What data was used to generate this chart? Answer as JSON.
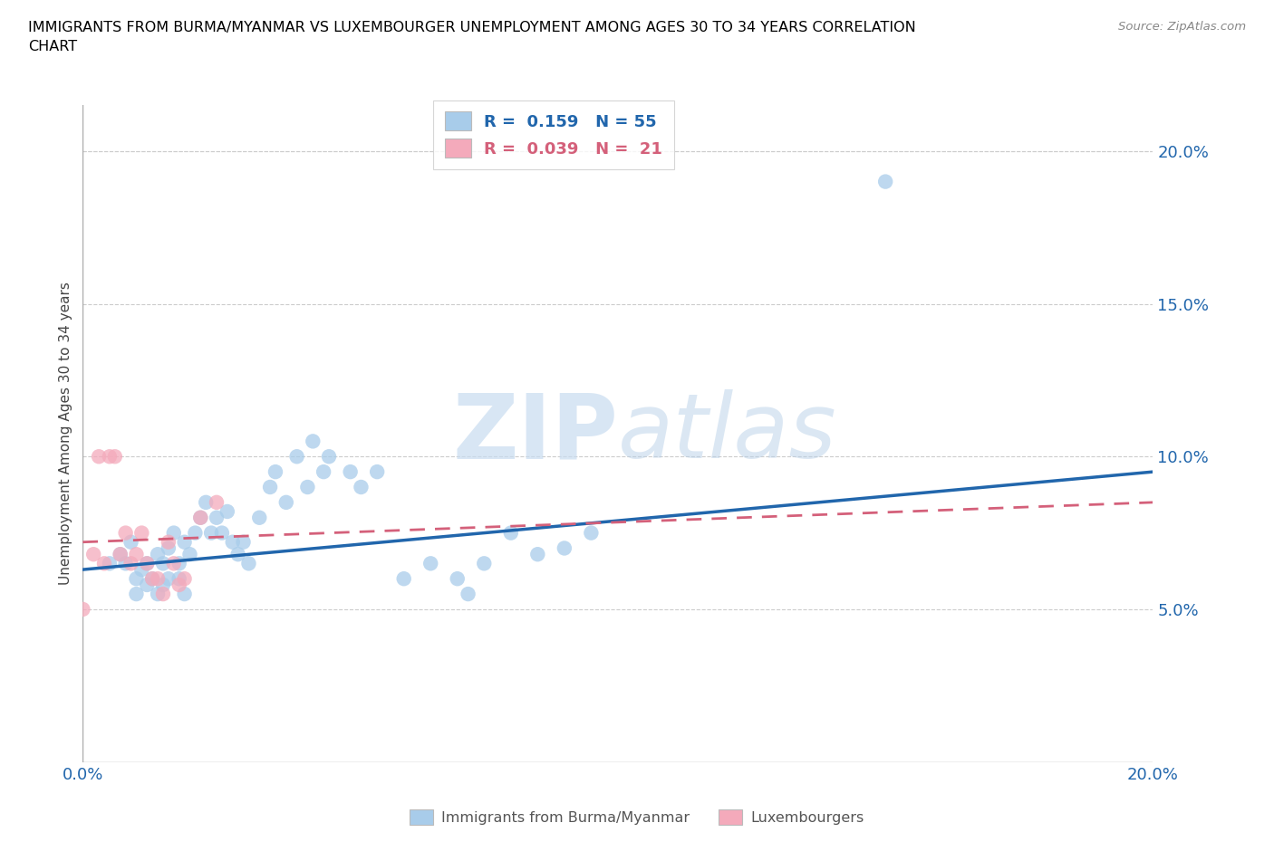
{
  "title": "IMMIGRANTS FROM BURMA/MYANMAR VS LUXEMBOURGER UNEMPLOYMENT AMONG AGES 30 TO 34 YEARS CORRELATION\nCHART",
  "source": "Source: ZipAtlas.com",
  "ylabel": "Unemployment Among Ages 30 to 34 years",
  "xlim": [
    0.0,
    0.2
  ],
  "ylim": [
    0.0,
    0.215
  ],
  "xticks": [
    0.0,
    0.04,
    0.08,
    0.12,
    0.16,
    0.2
  ],
  "yticks": [
    0.0,
    0.05,
    0.1,
    0.15,
    0.2
  ],
  "xtick_labels": [
    "0.0%",
    "",
    "",
    "",
    "",
    "20.0%"
  ],
  "ytick_labels": [
    "",
    "5.0%",
    "10.0%",
    "15.0%",
    "20.0%"
  ],
  "blue_color": "#A8CCEA",
  "pink_color": "#F4AABB",
  "blue_line_color": "#2166AC",
  "pink_line_color": "#D4607A",
  "watermark_zip": "ZIP",
  "watermark_atlas": "atlas",
  "legend_R1": "R =  0.159",
  "legend_N1": "N = 55",
  "legend_R2": "R =  0.039",
  "legend_N2": "N =  21",
  "blue_scatter_x": [
    0.005,
    0.007,
    0.008,
    0.009,
    0.01,
    0.01,
    0.011,
    0.012,
    0.012,
    0.013,
    0.014,
    0.014,
    0.015,
    0.015,
    0.016,
    0.016,
    0.017,
    0.018,
    0.018,
    0.019,
    0.019,
    0.02,
    0.021,
    0.022,
    0.023,
    0.024,
    0.025,
    0.026,
    0.027,
    0.028,
    0.029,
    0.03,
    0.031,
    0.033,
    0.035,
    0.036,
    0.038,
    0.04,
    0.042,
    0.043,
    0.045,
    0.046,
    0.05,
    0.052,
    0.055,
    0.06,
    0.065,
    0.07,
    0.072,
    0.075,
    0.08,
    0.085,
    0.09,
    0.095,
    0.15
  ],
  "blue_scatter_y": [
    0.065,
    0.068,
    0.065,
    0.072,
    0.06,
    0.055,
    0.063,
    0.065,
    0.058,
    0.06,
    0.055,
    0.068,
    0.065,
    0.058,
    0.07,
    0.06,
    0.075,
    0.065,
    0.06,
    0.055,
    0.072,
    0.068,
    0.075,
    0.08,
    0.085,
    0.075,
    0.08,
    0.075,
    0.082,
    0.072,
    0.068,
    0.072,
    0.065,
    0.08,
    0.09,
    0.095,
    0.085,
    0.1,
    0.09,
    0.105,
    0.095,
    0.1,
    0.095,
    0.09,
    0.095,
    0.06,
    0.065,
    0.06,
    0.055,
    0.065,
    0.075,
    0.068,
    0.07,
    0.075,
    0.19
  ],
  "pink_scatter_x": [
    0.0,
    0.002,
    0.003,
    0.004,
    0.005,
    0.006,
    0.007,
    0.008,
    0.009,
    0.01,
    0.011,
    0.012,
    0.013,
    0.014,
    0.015,
    0.016,
    0.017,
    0.018,
    0.019,
    0.022,
    0.025
  ],
  "pink_scatter_y": [
    0.05,
    0.068,
    0.1,
    0.065,
    0.1,
    0.1,
    0.068,
    0.075,
    0.065,
    0.068,
    0.075,
    0.065,
    0.06,
    0.06,
    0.055,
    0.072,
    0.065,
    0.058,
    0.06,
    0.08,
    0.085
  ],
  "blue_trend_start_x": 0.0,
  "blue_trend_start_y": 0.063,
  "blue_trend_end_x": 0.2,
  "blue_trend_end_y": 0.095,
  "pink_trend_start_x": 0.0,
  "pink_trend_start_y": 0.072,
  "pink_trend_end_x": 0.2,
  "pink_trend_end_y": 0.085
}
